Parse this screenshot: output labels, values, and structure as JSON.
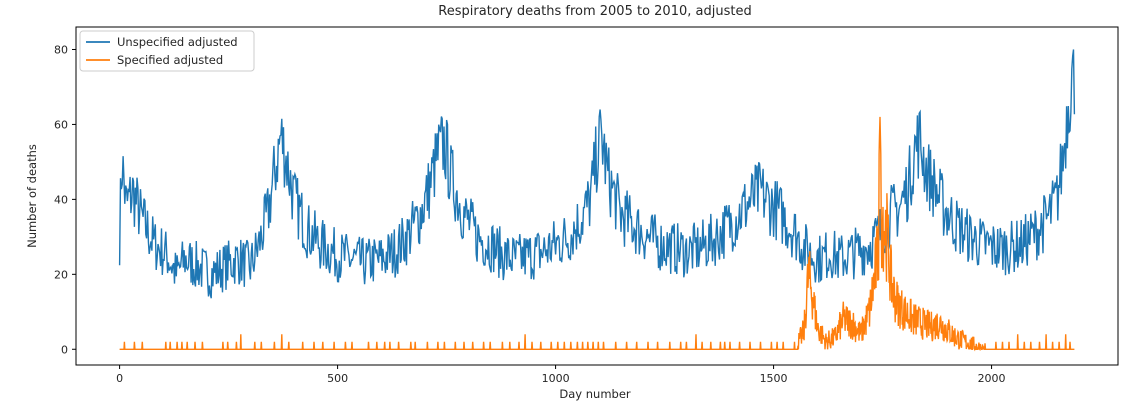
{
  "chart_data": {
    "type": "line",
    "title": "Respiratory deaths from 2005 to 2010, adjusted",
    "xlabel": "Day number",
    "ylabel": "Number of deaths",
    "xlim": [
      -100,
      2290
    ],
    "ylim": [
      -4.2,
      86
    ],
    "x_ticks": [
      0,
      500,
      1000,
      1500,
      2000
    ],
    "y_ticks": [
      0,
      20,
      40,
      60,
      80
    ],
    "grid": false,
    "legend_position": "top-left",
    "series": [
      {
        "name": "Unspecified adjusted",
        "color": "#1f77b4",
        "points": [
          [
            0,
            30
          ],
          [
            5,
            51
          ],
          [
            15,
            38
          ],
          [
            30,
            42
          ],
          [
            50,
            35
          ],
          [
            80,
            28
          ],
          [
            110,
            25
          ],
          [
            130,
            20
          ],
          [
            150,
            24
          ],
          [
            180,
            22
          ],
          [
            210,
            20
          ],
          [
            240,
            22
          ],
          [
            270,
            24
          ],
          [
            300,
            22
          ],
          [
            320,
            28
          ],
          [
            340,
            36
          ],
          [
            360,
            50
          ],
          [
            370,
            57
          ],
          [
            380,
            52
          ],
          [
            400,
            40
          ],
          [
            430,
            32
          ],
          [
            460,
            28
          ],
          [
            500,
            25
          ],
          [
            530,
            24
          ],
          [
            560,
            23
          ],
          [
            600,
            24
          ],
          [
            630,
            26
          ],
          [
            660,
            30
          ],
          [
            690,
            36
          ],
          [
            710,
            43
          ],
          [
            730,
            52
          ],
          [
            745,
            55
          ],
          [
            760,
            46
          ],
          [
            790,
            36
          ],
          [
            820,
            30
          ],
          [
            850,
            28
          ],
          [
            880,
            25
          ],
          [
            910,
            24
          ],
          [
            940,
            25
          ],
          [
            970,
            26
          ],
          [
            1000,
            28
          ],
          [
            1030,
            30
          ],
          [
            1060,
            35
          ],
          [
            1080,
            40
          ],
          [
            1095,
            52
          ],
          [
            1105,
            57
          ],
          [
            1120,
            46
          ],
          [
            1150,
            36
          ],
          [
            1180,
            33
          ],
          [
            1210,
            30
          ],
          [
            1240,
            28
          ],
          [
            1270,
            27
          ],
          [
            1300,
            26
          ],
          [
            1330,
            27
          ],
          [
            1360,
            29
          ],
          [
            1390,
            32
          ],
          [
            1420,
            36
          ],
          [
            1450,
            40
          ],
          [
            1470,
            42
          ],
          [
            1490,
            39
          ],
          [
            1510,
            37
          ],
          [
            1530,
            34
          ],
          [
            1550,
            31
          ],
          [
            1570,
            27
          ],
          [
            1590,
            25
          ],
          [
            1610,
            24
          ],
          [
            1630,
            26
          ],
          [
            1650,
            24
          ],
          [
            1670,
            25
          ],
          [
            1690,
            26
          ],
          [
            1710,
            27
          ],
          [
            1730,
            29
          ],
          [
            1750,
            32
          ],
          [
            1770,
            36
          ],
          [
            1790,
            38
          ],
          [
            1810,
            44
          ],
          [
            1825,
            54
          ],
          [
            1835,
            56
          ],
          [
            1850,
            48
          ],
          [
            1870,
            43
          ],
          [
            1890,
            38
          ],
          [
            1920,
            33
          ],
          [
            1950,
            30
          ],
          [
            1980,
            28
          ],
          [
            2010,
            27
          ],
          [
            2040,
            27
          ],
          [
            2070,
            28
          ],
          [
            2100,
            31
          ],
          [
            2130,
            35
          ],
          [
            2150,
            40
          ],
          [
            2165,
            52
          ],
          [
            2175,
            65
          ],
          [
            2185,
            74
          ],
          [
            2190,
            70
          ]
        ]
      },
      {
        "name": "Specified adjusted",
        "color": "#ff7f0e",
        "points": [
          [
            0,
            0
          ],
          [
            1550,
            0
          ],
          [
            1570,
            5
          ],
          [
            1580,
            20
          ],
          [
            1590,
            14
          ],
          [
            1600,
            6
          ],
          [
            1620,
            2
          ],
          [
            1640,
            3
          ],
          [
            1660,
            8
          ],
          [
            1680,
            7
          ],
          [
            1700,
            4
          ],
          [
            1720,
            10
          ],
          [
            1740,
            26
          ],
          [
            1750,
            36
          ],
          [
            1760,
            30
          ],
          [
            1770,
            18
          ],
          [
            1780,
            13
          ],
          [
            1800,
            10
          ],
          [
            1820,
            8
          ],
          [
            1840,
            7
          ],
          [
            1860,
            6
          ],
          [
            1880,
            7
          ],
          [
            1900,
            5
          ],
          [
            1920,
            3
          ],
          [
            1940,
            2
          ],
          [
            1960,
            1
          ],
          [
            1980,
            0
          ],
          [
            2190,
            0
          ]
        ],
        "spikes": [
          [
            11,
            2
          ],
          [
            34,
            2
          ],
          [
            52,
            2
          ],
          [
            106,
            2
          ],
          [
            116,
            2
          ],
          [
            132,
            2
          ],
          [
            143,
            2
          ],
          [
            155,
            2
          ],
          [
            173,
            2
          ],
          [
            190,
            2
          ],
          [
            237,
            2
          ],
          [
            248,
            2
          ],
          [
            268,
            2
          ],
          [
            278,
            4
          ],
          [
            310,
            2
          ],
          [
            325,
            2
          ],
          [
            355,
            2
          ],
          [
            372,
            4
          ],
          [
            388,
            2
          ],
          [
            420,
            2
          ],
          [
            446,
            2
          ],
          [
            466,
            2
          ],
          [
            492,
            2
          ],
          [
            518,
            2
          ],
          [
            533,
            2
          ],
          [
            571,
            2
          ],
          [
            590,
            2
          ],
          [
            608,
            2
          ],
          [
            620,
            2
          ],
          [
            640,
            2
          ],
          [
            668,
            2
          ],
          [
            678,
            2
          ],
          [
            706,
            2
          ],
          [
            730,
            2
          ],
          [
            745,
            2
          ],
          [
            770,
            2
          ],
          [
            790,
            2
          ],
          [
            810,
            2
          ],
          [
            835,
            2
          ],
          [
            850,
            2
          ],
          [
            878,
            2
          ],
          [
            895,
            2
          ],
          [
            916,
            2
          ],
          [
            930,
            4
          ],
          [
            946,
            2
          ],
          [
            966,
            2
          ],
          [
            990,
            2
          ],
          [
            1005,
            2
          ],
          [
            1020,
            2
          ],
          [
            1035,
            2
          ],
          [
            1050,
            2
          ],
          [
            1062,
            2
          ],
          [
            1074,
            2
          ],
          [
            1086,
            2
          ],
          [
            1098,
            2
          ],
          [
            1110,
            2
          ],
          [
            1138,
            2
          ],
          [
            1163,
            2
          ],
          [
            1186,
            2
          ],
          [
            1212,
            2
          ],
          [
            1234,
            2
          ],
          [
            1262,
            2
          ],
          [
            1287,
            2
          ],
          [
            1300,
            2
          ],
          [
            1322,
            4
          ],
          [
            1336,
            2
          ],
          [
            1356,
            2
          ],
          [
            1378,
            2
          ],
          [
            1388,
            2
          ],
          [
            1400,
            2
          ],
          [
            1422,
            2
          ],
          [
            1446,
            2
          ],
          [
            1470,
            2
          ],
          [
            1495,
            2
          ],
          [
            1508,
            2
          ],
          [
            1522,
            2
          ],
          [
            1548,
            2
          ],
          [
            2010,
            2
          ],
          [
            2025,
            2
          ],
          [
            2040,
            2
          ],
          [
            2060,
            4
          ],
          [
            2075,
            2
          ],
          [
            2090,
            2
          ],
          [
            2110,
            2
          ],
          [
            2125,
            4
          ],
          [
            2140,
            2
          ],
          [
            2155,
            2
          ],
          [
            2170,
            4
          ],
          [
            2180,
            2
          ]
        ]
      }
    ]
  }
}
